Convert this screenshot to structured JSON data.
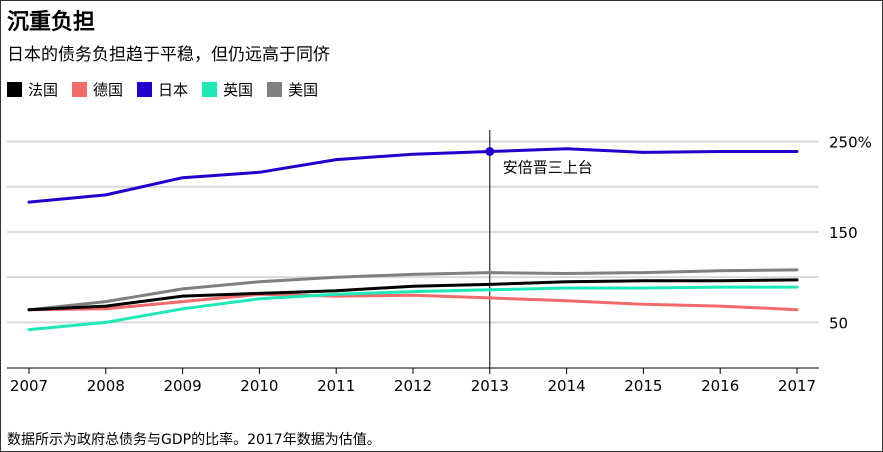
{
  "title": "沉重负担",
  "subtitle": "日本的债务负担趋于平稳，但仍远高于同侪",
  "footnote": "数据所示为政府总债务与GDP的比率。2017年数据为估值。",
  "chart_data": {
    "type": "line",
    "x": [
      2007,
      2008,
      2009,
      2010,
      2011,
      2012,
      2013,
      2014,
      2015,
      2016,
      2017
    ],
    "x_tick_labels": [
      "2007",
      "2008",
      "2009",
      "2010",
      "2011",
      "2012",
      "2013",
      "2014",
      "2015",
      "2016",
      "2017"
    ],
    "ylim": [
      -0.5,
      265
    ],
    "y_ticks": [
      50,
      100,
      150,
      200,
      250
    ],
    "y_tick_labels": {
      "50": "50",
      "150": "150",
      "250": "250%"
    },
    "grid": true,
    "legend_position": "top-left",
    "series": [
      {
        "name": "法国",
        "color": "#000000",
        "values": [
          64,
          68,
          79,
          82,
          85,
          90,
          92,
          95,
          96,
          96,
          97
        ]
      },
      {
        "name": "德国",
        "color": "#f26b6b",
        "values": [
          64,
          65,
          73,
          81,
          79,
          80,
          77,
          74,
          70,
          68,
          64
        ]
      },
      {
        "name": "日本",
        "color": "#2200cc",
        "values": [
          183,
          191,
          210,
          216,
          230,
          236,
          239,
          242,
          238,
          239,
          239
        ]
      },
      {
        "name": "英国",
        "color": "#1de9b6",
        "values": [
          42,
          50,
          65,
          76,
          81,
          84,
          86,
          88,
          88,
          89,
          89
        ]
      },
      {
        "name": "美国",
        "color": "#808080",
        "values": [
          64,
          73,
          87,
          95,
          100,
          103,
          105,
          104,
          105,
          107,
          108
        ]
      }
    ],
    "annotation": {
      "x": 2013,
      "y": 239,
      "series": "日本",
      "label": "安倍晋三上台"
    }
  }
}
